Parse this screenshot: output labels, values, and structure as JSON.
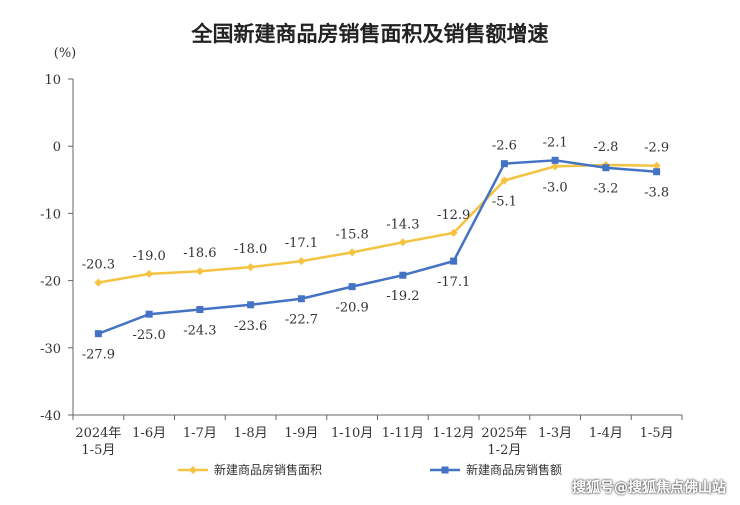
{
  "chart_data": {
    "type": "line",
    "title": "全国新建商品房销售面积及销售额增速",
    "ylabel": "(%)",
    "ylim": [
      -40,
      10
    ],
    "yticks": [
      10,
      0,
      -10,
      -20,
      -30,
      -40
    ],
    "categories": [
      "2024年\n1-5月",
      "1-6月",
      "1-7月",
      "1-8月",
      "1-9月",
      "1-10月",
      "1-11月",
      "1-12月",
      "2025年\n1-2月",
      "1-3月",
      "1-4月",
      "1-5月"
    ],
    "grid": false,
    "legend_position": "bottom",
    "series": [
      {
        "name": "新建商品房销售面积",
        "color": "#F5C342",
        "values": [
          -20.3,
          -19.0,
          -18.6,
          -18.0,
          -17.1,
          -15.8,
          -14.3,
          -12.9,
          -5.1,
          -3.0,
          -2.8,
          -2.9
        ]
      },
      {
        "name": "新建商品房销售额",
        "color": "#4472C4",
        "values": [
          -27.9,
          -25.0,
          -24.3,
          -23.6,
          -22.7,
          -20.9,
          -19.2,
          -17.1,
          -2.6,
          -2.1,
          -3.2,
          -3.8
        ]
      }
    ]
  },
  "watermark": "搜狐号@搜狐焦点佛山站"
}
